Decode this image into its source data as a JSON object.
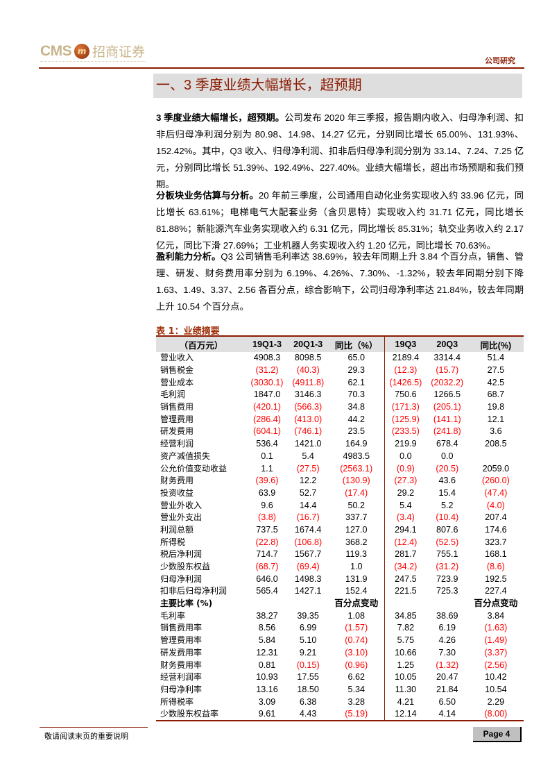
{
  "header": {
    "logo_text_latin": "CMS",
    "logo_mark": "m",
    "logo_text_cn": "招商证券",
    "doc_type": "公司研究"
  },
  "section_title": "一、3 季度业绩大幅增长，超预期",
  "paragraphs": [
    {
      "lead": "3 季度业绩大幅增长，超预期。",
      "body": "公司发布 2020 年三季报，报告期内收入、归母净利润、扣非后归母净利润分别为 80.98、14.98、14.27 亿元，分别同比增长 65.00%、131.93%、152.42%。其中，Q3 收入、归母净利润、扣非后归母净利润分别为 33.14、7.24、7.25 亿元，分别同比增长 51.39%、192.49%、227.40%。业绩大幅增长，超出市场预期和我们预期。"
    },
    {
      "lead": "分板块业务估算与分析。",
      "body": "20 年前三季度，公司通用自动化业务实现收入约 33.96 亿元，同比增长 63.61%；电梯电气大配套业务（含贝思特）实现收入约 31.71 亿元，同比增长 81.88%；新能源汽车业务实现收入约 6.31 亿元，同比增长 85.31%；轨交业务收入约 2.17 亿元，同比下滑 27.69%；工业机器人务实现收入约 1.20 亿元，同比增长 70.63%。"
    },
    {
      "lead": "盈利能力分析。",
      "body": "Q3 公司销售毛利率达 38.69%，较去年同期上升 3.84 个百分点，销售、管理、研发、财务费用率分别为 6.19%、4.26%、7.30%、-1.32%，较去年同期分别下降 1.63、1.49、3.37、2.56 各百分点，综合影响下，公司归母净利率达 21.84%，较去年同期上升 10.54 个百分点。"
    }
  ],
  "table": {
    "caption": "表 1：业绩摘要",
    "headers": [
      "（百万元）",
      "19Q1-3",
      "20Q1-3",
      "同比（%）",
      "19Q3",
      "20Q3",
      "同比(%)"
    ],
    "rows": [
      [
        "营业收入",
        "4908.3",
        "8098.5",
        "65.0",
        "2189.4",
        "3314.4",
        "51.4"
      ],
      [
        "销售税金",
        "(31.2)",
        "(40.3)",
        "29.3",
        "(12.3)",
        "(15.7)",
        "27.5"
      ],
      [
        "营业成本",
        "(3030.1)",
        "(4911.8)",
        "62.1",
        "(1426.5)",
        "(2032.2)",
        "42.5"
      ],
      [
        "毛利润",
        "1847.0",
        "3146.3",
        "70.3",
        "750.6",
        "1266.5",
        "68.7"
      ],
      [
        "销售费用",
        "(420.1)",
        "(566.3)",
        "34.8",
        "(171.3)",
        "(205.1)",
        "19.8"
      ],
      [
        "管理费用",
        "(286.4)",
        "(413.0)",
        "44.2",
        "(125.9)",
        "(141.1)",
        "12.1"
      ],
      [
        "研发费用",
        "(604.1)",
        "(746.1)",
        "23.5",
        "(233.5)",
        "(241.8)",
        "3.6"
      ],
      [
        "经营利润",
        "536.4",
        "1421.0",
        "164.9",
        "219.9",
        "678.4",
        "208.5"
      ],
      [
        "资产减值损失",
        "0.1",
        "5.4",
        "4983.5",
        "0.0",
        "0.0",
        ""
      ],
      [
        "公允价值变动收益",
        "1.1",
        "(27.5)",
        "(2563.1)",
        "(0.9)",
        "(20.5)",
        "2059.0"
      ],
      [
        "财务费用",
        "(39.6)",
        "12.2",
        "(130.9)",
        "(27.3)",
        "43.6",
        "(260.0)"
      ],
      [
        "投资收益",
        "63.9",
        "52.7",
        "(17.4)",
        "29.2",
        "15.4",
        "(47.4)"
      ],
      [
        "营业外收入",
        "9.6",
        "14.4",
        "50.2",
        "5.4",
        "5.2",
        "(4.0)"
      ],
      [
        "营业外支出",
        "(3.8)",
        "(16.7)",
        "337.7",
        "(3.4)",
        "(10.4)",
        "207.4"
      ],
      [
        "利润总额",
        "737.5",
        "1674.4",
        "127.0",
        "294.1",
        "807.6",
        "174.6"
      ],
      [
        "所得税",
        "(22.8)",
        "(106.8)",
        "368.2",
        "(12.4)",
        "(52.5)",
        "323.7"
      ],
      [
        "税后净利润",
        "714.7",
        "1567.7",
        "119.3",
        "281.7",
        "755.1",
        "168.1"
      ],
      [
        "少数股东权益",
        "(68.7)",
        "(69.4)",
        "1.0",
        "(34.2)",
        "(31.2)",
        "(8.6)"
      ],
      [
        "归母净利润",
        "646.0",
        "1498.3",
        "131.9",
        "247.5",
        "723.9",
        "192.5"
      ],
      [
        "扣非后归母净利润",
        "565.4",
        "1427.1",
        "152.4",
        "221.5",
        "725.3",
        "227.4"
      ]
    ],
    "ratio_header": [
      "主要比率 (%)",
      "",
      "",
      "百分点变动",
      "",
      "",
      "百分点变动"
    ],
    "ratio_rows": [
      [
        "毛利率",
        "38.27",
        "39.35",
        "1.08",
        "34.85",
        "38.69",
        "3.84"
      ],
      [
        "销售费用率",
        "8.56",
        "6.99",
        "(1.57)",
        "7.82",
        "6.19",
        "(1.63)"
      ],
      [
        "管理费用率",
        "5.84",
        "5.10",
        "(0.74)",
        "5.75",
        "4.26",
        "(1.49)"
      ],
      [
        "研发费用率",
        "12.31",
        "9.21",
        "(3.10)",
        "10.66",
        "7.30",
        "(3.37)"
      ],
      [
        "财务费用率",
        "0.81",
        "(0.15)",
        "(0.96)",
        "1.25",
        "(1.32)",
        "(2.56)"
      ],
      [
        "经营利润率",
        "10.93",
        "17.55",
        "6.62",
        "10.05",
        "20.47",
        "10.42"
      ],
      [
        "归母净利率",
        "13.16",
        "18.50",
        "5.34",
        "11.30",
        "21.84",
        "10.54"
      ],
      [
        "所得税率",
        "3.09",
        "6.38",
        "3.28",
        "4.21",
        "6.50",
        "2.29"
      ],
      [
        "少数股东权益率",
        "9.61",
        "4.43",
        "(5.19)",
        "12.14",
        "4.14",
        "(8.00)"
      ]
    ]
  },
  "footer": {
    "note": "敬请阅读末页的重要说明",
    "page_label": "Page  4"
  },
  "colors": {
    "brand": "#8b1a00",
    "negative": "#ff0000",
    "header_bg": "#e0e0e0"
  }
}
